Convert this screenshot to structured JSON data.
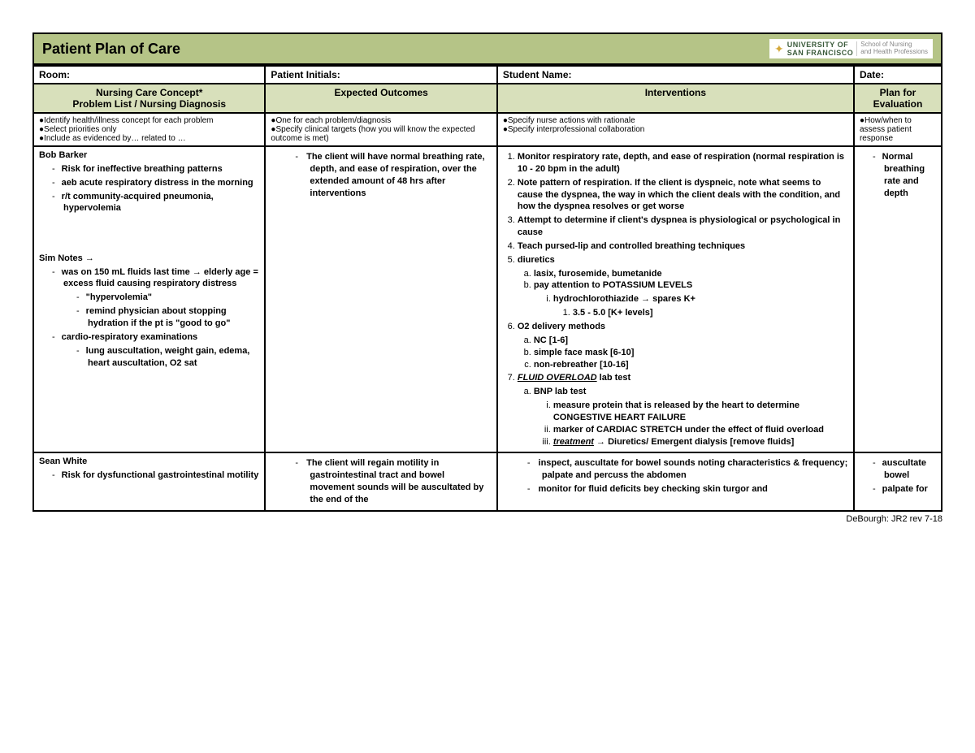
{
  "title": "Patient Plan of Care",
  "logo": {
    "line1": "UNIVERSITY OF",
    "line2": "SAN FRANCISCO",
    "line3a": "School of Nursing",
    "line3b": "and Health Professions"
  },
  "info": {
    "room": "Room:",
    "initials": "Patient Initials:",
    "student": "Student Name:",
    "date": "Date:"
  },
  "headers": {
    "col1a": "Nursing Care Concept*",
    "col1b": "Problem List / Nursing Diagnosis",
    "col2": "Expected Outcomes",
    "col3": "Interventions",
    "col4a": "Plan for",
    "col4b": "Evaluation"
  },
  "sub": {
    "c1a": "Identify health/illness concept for each problem",
    "c1b": "Select priorities only",
    "c1c": "Include as evidenced by… related to …",
    "c2a": "One for each problem/diagnosis",
    "c2b": "Specify clinical targets (how you will know the expected outcome is met)",
    "c3a": "Specify nurse actions with rationale",
    "c3b": "Specify interprofessional collaboration",
    "c4": "How/when to assess patient response"
  },
  "row1": {
    "name": "Bob Barker",
    "diag1": "Risk for ineffective breathing patterns",
    "diag2": "aeb acute respiratory distress in the morning",
    "diag3": "r/t community-acquired pneumonia, hypervolemia",
    "simHeader": "Sim Notes →",
    "sim1": "was on 150 mL fluids last time → elderly age = excess fluid causing respiratory distress",
    "sim1a": "\"hypervolemia\"",
    "sim1b": "remind physician about stopping hydration if the pt is \"good to go\"",
    "sim2": "cardio-respiratory examinations",
    "sim2a": "lung auscultation, weight gain, edema, heart auscultation, O2 sat",
    "outcome": "The client will have normal breathing rate, depth, and ease of respiration, over the extended amount of 48 hrs after interventions",
    "int1": "Monitor respiratory rate, depth, and ease of respiration (normal respiration is 10 - 20 bpm in the adult)",
    "int2": "Note pattern of respiration. If the client is dyspneic, note what seems to cause the dyspnea, the way in which the client deals with the condition, and how the dyspnea resolves or get worse",
    "int3": "Attempt to determine if client's dyspnea is physiological or psychological in cause",
    "int4": "Teach pursed-lip and controlled breathing techniques",
    "int5": "diuretics",
    "int5a": "lasix, furosemide, bumetanide",
    "int5b": "pay attention to POTASSIUM LEVELS",
    "int5bi": "hydrochlorothiazide → spares K+",
    "int5bi1": "3.5 - 5.0 [K+ levels]",
    "int6": "O2 delivery methods",
    "int6a": "NC [1-6]",
    "int6b": "simple face mask [6-10]",
    "int6c": "non-rebreather [10-16]",
    "int7pre": "FLUID OVERLOAD",
    "int7post": " lab test",
    "int7a": "BNP lab test",
    "int7ai": "measure protein that is released by the heart to determine CONGESTIVE HEART FAILURE",
    "int7aii": "marker of CARDIAC STRETCH under the effect of fluid overload",
    "int7aiii_pre": "treatment",
    "int7aiii_post": " → Diuretics/ Emergent dialysis [remove fluids]",
    "eval": "Normal breathing rate and depth"
  },
  "row2": {
    "name": "Sean White",
    "diag1": "Risk for dysfunctional gastrointestinal motility",
    "outcome": "The client will regain motility in gastrointestinal tract and bowel movement sounds will be auscultated by the end of the",
    "int1": "inspect, auscultate for bowel sounds noting characteristics & frequency; palpate and percuss the abdomen",
    "int2": "monitor for fluid deficits bey checking skin turgor and",
    "eval1": "auscultate bowel",
    "eval2": "palpate for"
  },
  "footer": "DeBourgh: JR2 rev 7-18"
}
